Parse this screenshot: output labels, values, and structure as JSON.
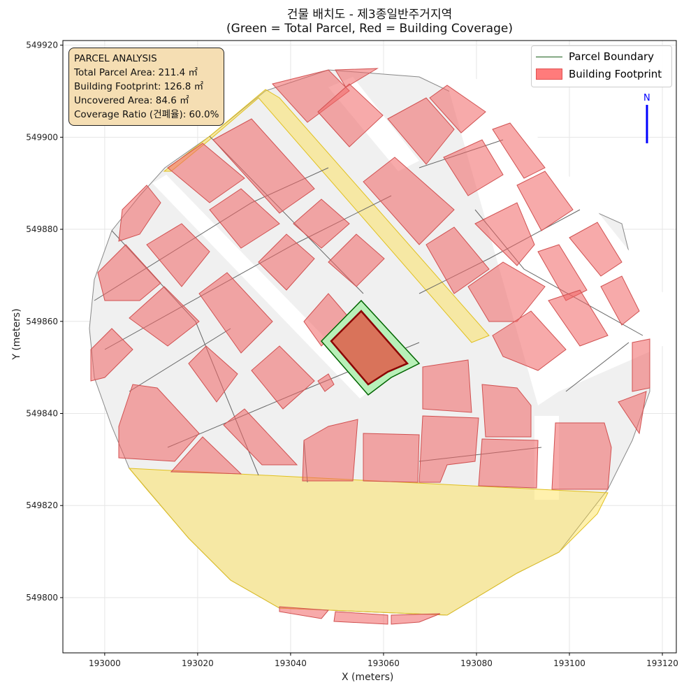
{
  "title": {
    "line1": "건물 배치도 - 제3종일반주거지역",
    "line2": "(Green = Total Parcel, Red = Building Coverage)"
  },
  "info_box": {
    "heading": "PARCEL ANALYSIS",
    "total_parcel_area": "Total Parcel Area: 211.4 ㎡",
    "building_footprint": "Building Footprint: 126.8 ㎡",
    "uncovered_area": "Uncovered Area: 84.6 ㎡",
    "coverage_ratio": "Coverage Ratio (건폐율): 60.0%"
  },
  "legend": {
    "items": [
      {
        "label": "Parcel Boundary",
        "color": "#1a5e1a"
      },
      {
        "label": "Building Footprint",
        "color": "#ff7b7b"
      }
    ]
  },
  "north_arrow": {
    "label": "N",
    "color": "#0000ff"
  },
  "axes": {
    "xlabel": "X (meters)",
    "ylabel": "Y (meters)",
    "xticks": [
      "193000",
      "193020",
      "193040",
      "193060",
      "193080",
      "193100",
      "193120"
    ],
    "yticks": [
      "549920",
      "549900",
      "549880",
      "549860",
      "549840",
      "549820",
      "549800"
    ],
    "xlim": [
      192991,
      193123
    ],
    "ylim": [
      549788,
      549921
    ],
    "grid": true
  },
  "colors": {
    "parcel_fill": "#f0f0f0",
    "building": "#f08080",
    "road": "#fff0a0",
    "target_parcel": "#90ee90",
    "target_building": "#c0392b"
  }
}
